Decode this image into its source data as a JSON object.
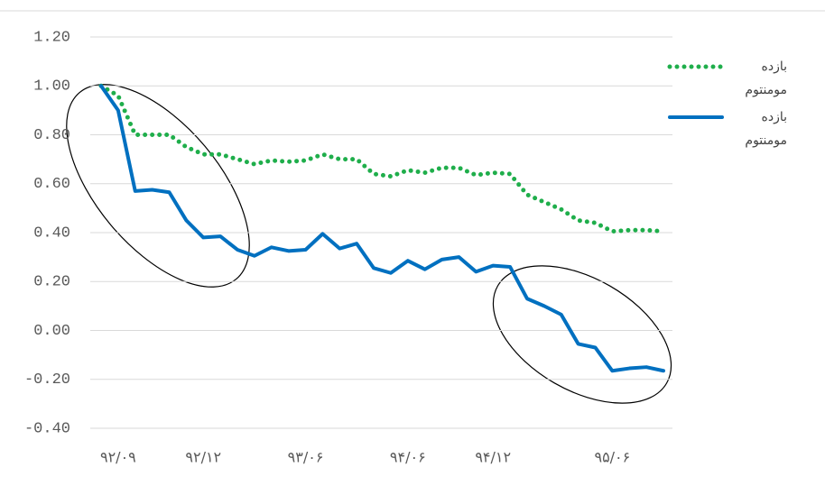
{
  "chart_data": {
    "type": "line",
    "categories": [
      null,
      "۹۲/۰۹",
      null,
      null,
      null,
      null,
      "۹۲/۱۲",
      null,
      null,
      null,
      null,
      null,
      "۹۳/۰۶",
      null,
      null,
      null,
      null,
      null,
      "۹۴/۰۶",
      null,
      null,
      null,
      null,
      "۹۴/۱۲",
      null,
      null,
      null,
      null,
      null,
      null,
      "۹۵/۰۶",
      null,
      null,
      null
    ],
    "series": [
      {
        "name": "بازده مومنتوم مدیریت شده",
        "color": "#1fae4b",
        "style": "dotted",
        "values": [
          1.0,
          0.96,
          0.8,
          0.8,
          0.8,
          0.75,
          0.72,
          0.72,
          0.7,
          0.68,
          0.695,
          0.69,
          0.695,
          0.72,
          0.7,
          0.7,
          0.64,
          0.63,
          0.655,
          0.645,
          0.665,
          0.665,
          0.635,
          0.645,
          0.64,
          0.555,
          0.525,
          0.495,
          0.45,
          0.44,
          0.405,
          0.41,
          0.41,
          0.405
        ]
      },
      {
        "name": "بازده مومنتوم مرسوم",
        "color": "#0070c0",
        "style": "solid",
        "values": [
          1.0,
          0.9,
          0.57,
          0.575,
          0.565,
          0.45,
          0.38,
          0.385,
          0.33,
          0.305,
          0.34,
          0.325,
          0.33,
          0.395,
          0.335,
          0.355,
          0.255,
          0.235,
          0.285,
          0.25,
          0.29,
          0.3,
          0.24,
          0.265,
          0.26,
          0.13,
          0.1,
          0.065,
          -0.055,
          -0.07,
          -0.165,
          -0.155,
          -0.15,
          -0.165
        ]
      }
    ],
    "ylim": [
      -0.4,
      1.2
    ],
    "yticks": [
      {
        "value": -0.4,
        "label": "-0.40"
      },
      {
        "value": -0.2,
        "label": "-0.20"
      },
      {
        "value": 0,
        "label": "0.00"
      },
      {
        "value": 0.2,
        "label": "0.20"
      },
      {
        "value": 0.4,
        "label": "0.40"
      },
      {
        "value": 0.6,
        "label": "0.60"
      },
      {
        "value": 0.8,
        "label": "0.80"
      },
      {
        "value": 1.0,
        "label": "1.00"
      },
      {
        "value": 1.2,
        "label": "1.20"
      }
    ],
    "grid": true,
    "legend": "right"
  }
}
